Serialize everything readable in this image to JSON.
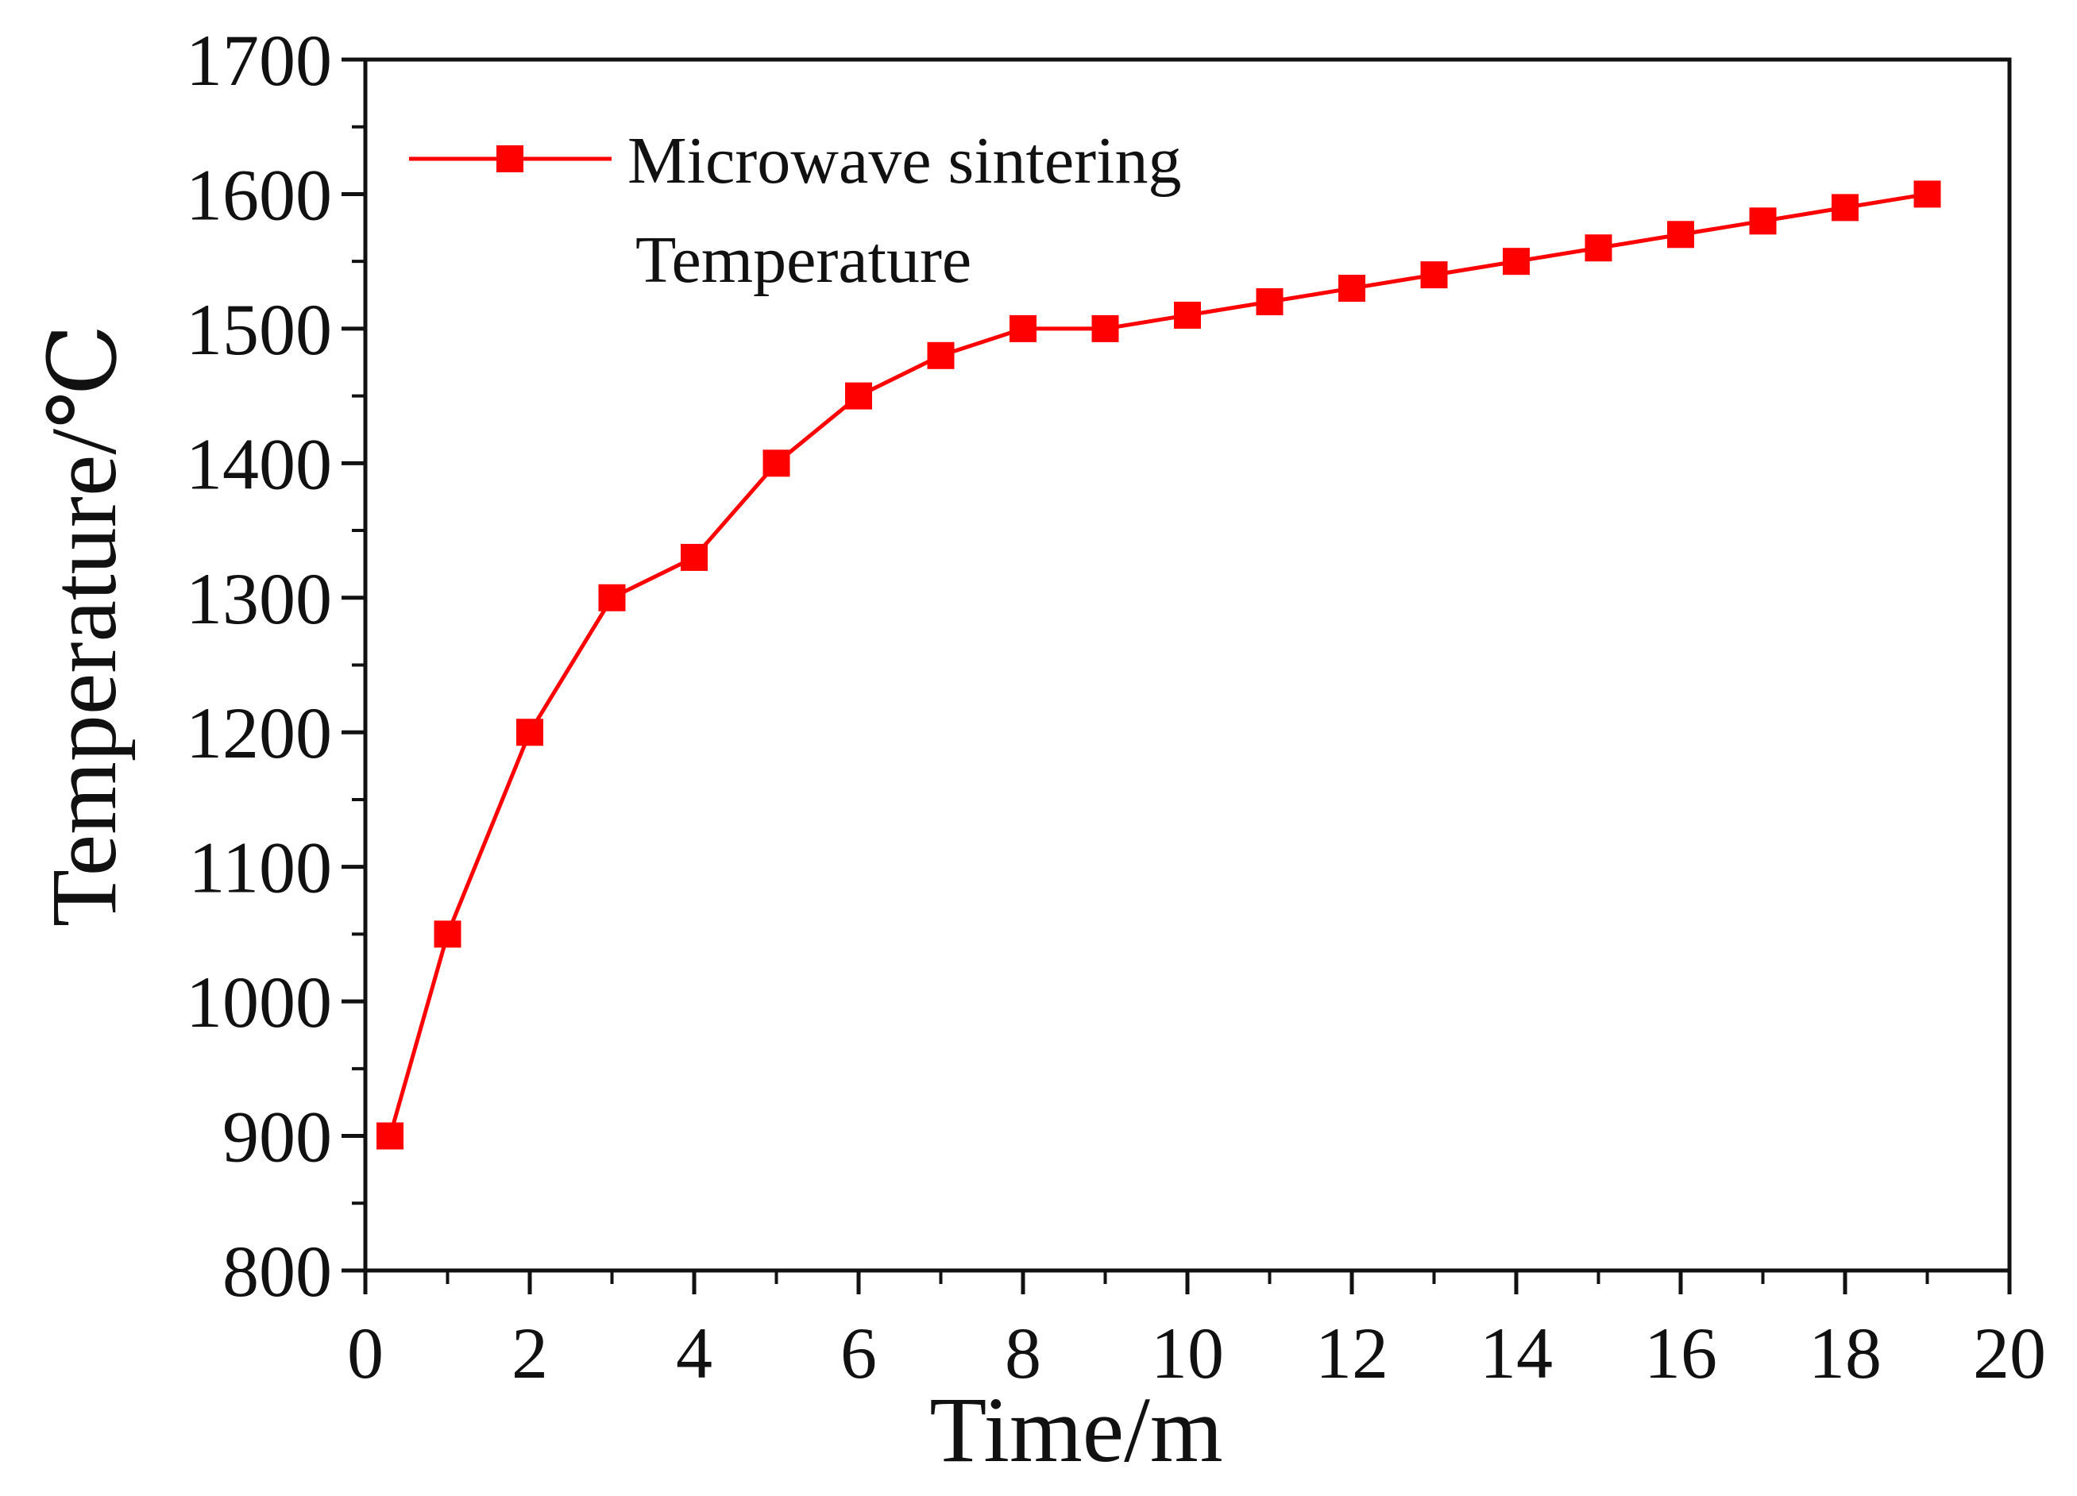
{
  "chart_data": {
    "type": "line",
    "title": "",
    "xlabel": "Time/m",
    "ylabel": "Temperature/℃",
    "xlim": [
      0,
      20
    ],
    "ylim": [
      800,
      1700
    ],
    "xticks": [
      0,
      2,
      4,
      6,
      8,
      10,
      12,
      14,
      16,
      18,
      20
    ],
    "yticks": [
      800,
      900,
      1000,
      1100,
      1200,
      1300,
      1400,
      1500,
      1600,
      1700
    ],
    "grid": false,
    "legend": {
      "placement": "top-left",
      "entries": [
        {
          "label": "Microwave sintering",
          "label_line2": "Temperature",
          "marker": "square",
          "color": "#ff0000"
        }
      ]
    },
    "series": [
      {
        "name": "Microwave sintering Temperature",
        "color": "#ff0000",
        "marker": "square",
        "x": [
          0.3,
          1,
          2,
          3,
          4,
          5,
          6,
          7,
          8,
          9,
          10,
          11,
          12,
          13,
          14,
          15,
          16,
          17,
          18,
          19
        ],
        "y": [
          900,
          1050,
          1200,
          1300,
          1330,
          1400,
          1450,
          1480,
          1500,
          1500,
          1510,
          1520,
          1530,
          1540,
          1550,
          1560,
          1570,
          1580,
          1590,
          1600
        ]
      }
    ]
  }
}
